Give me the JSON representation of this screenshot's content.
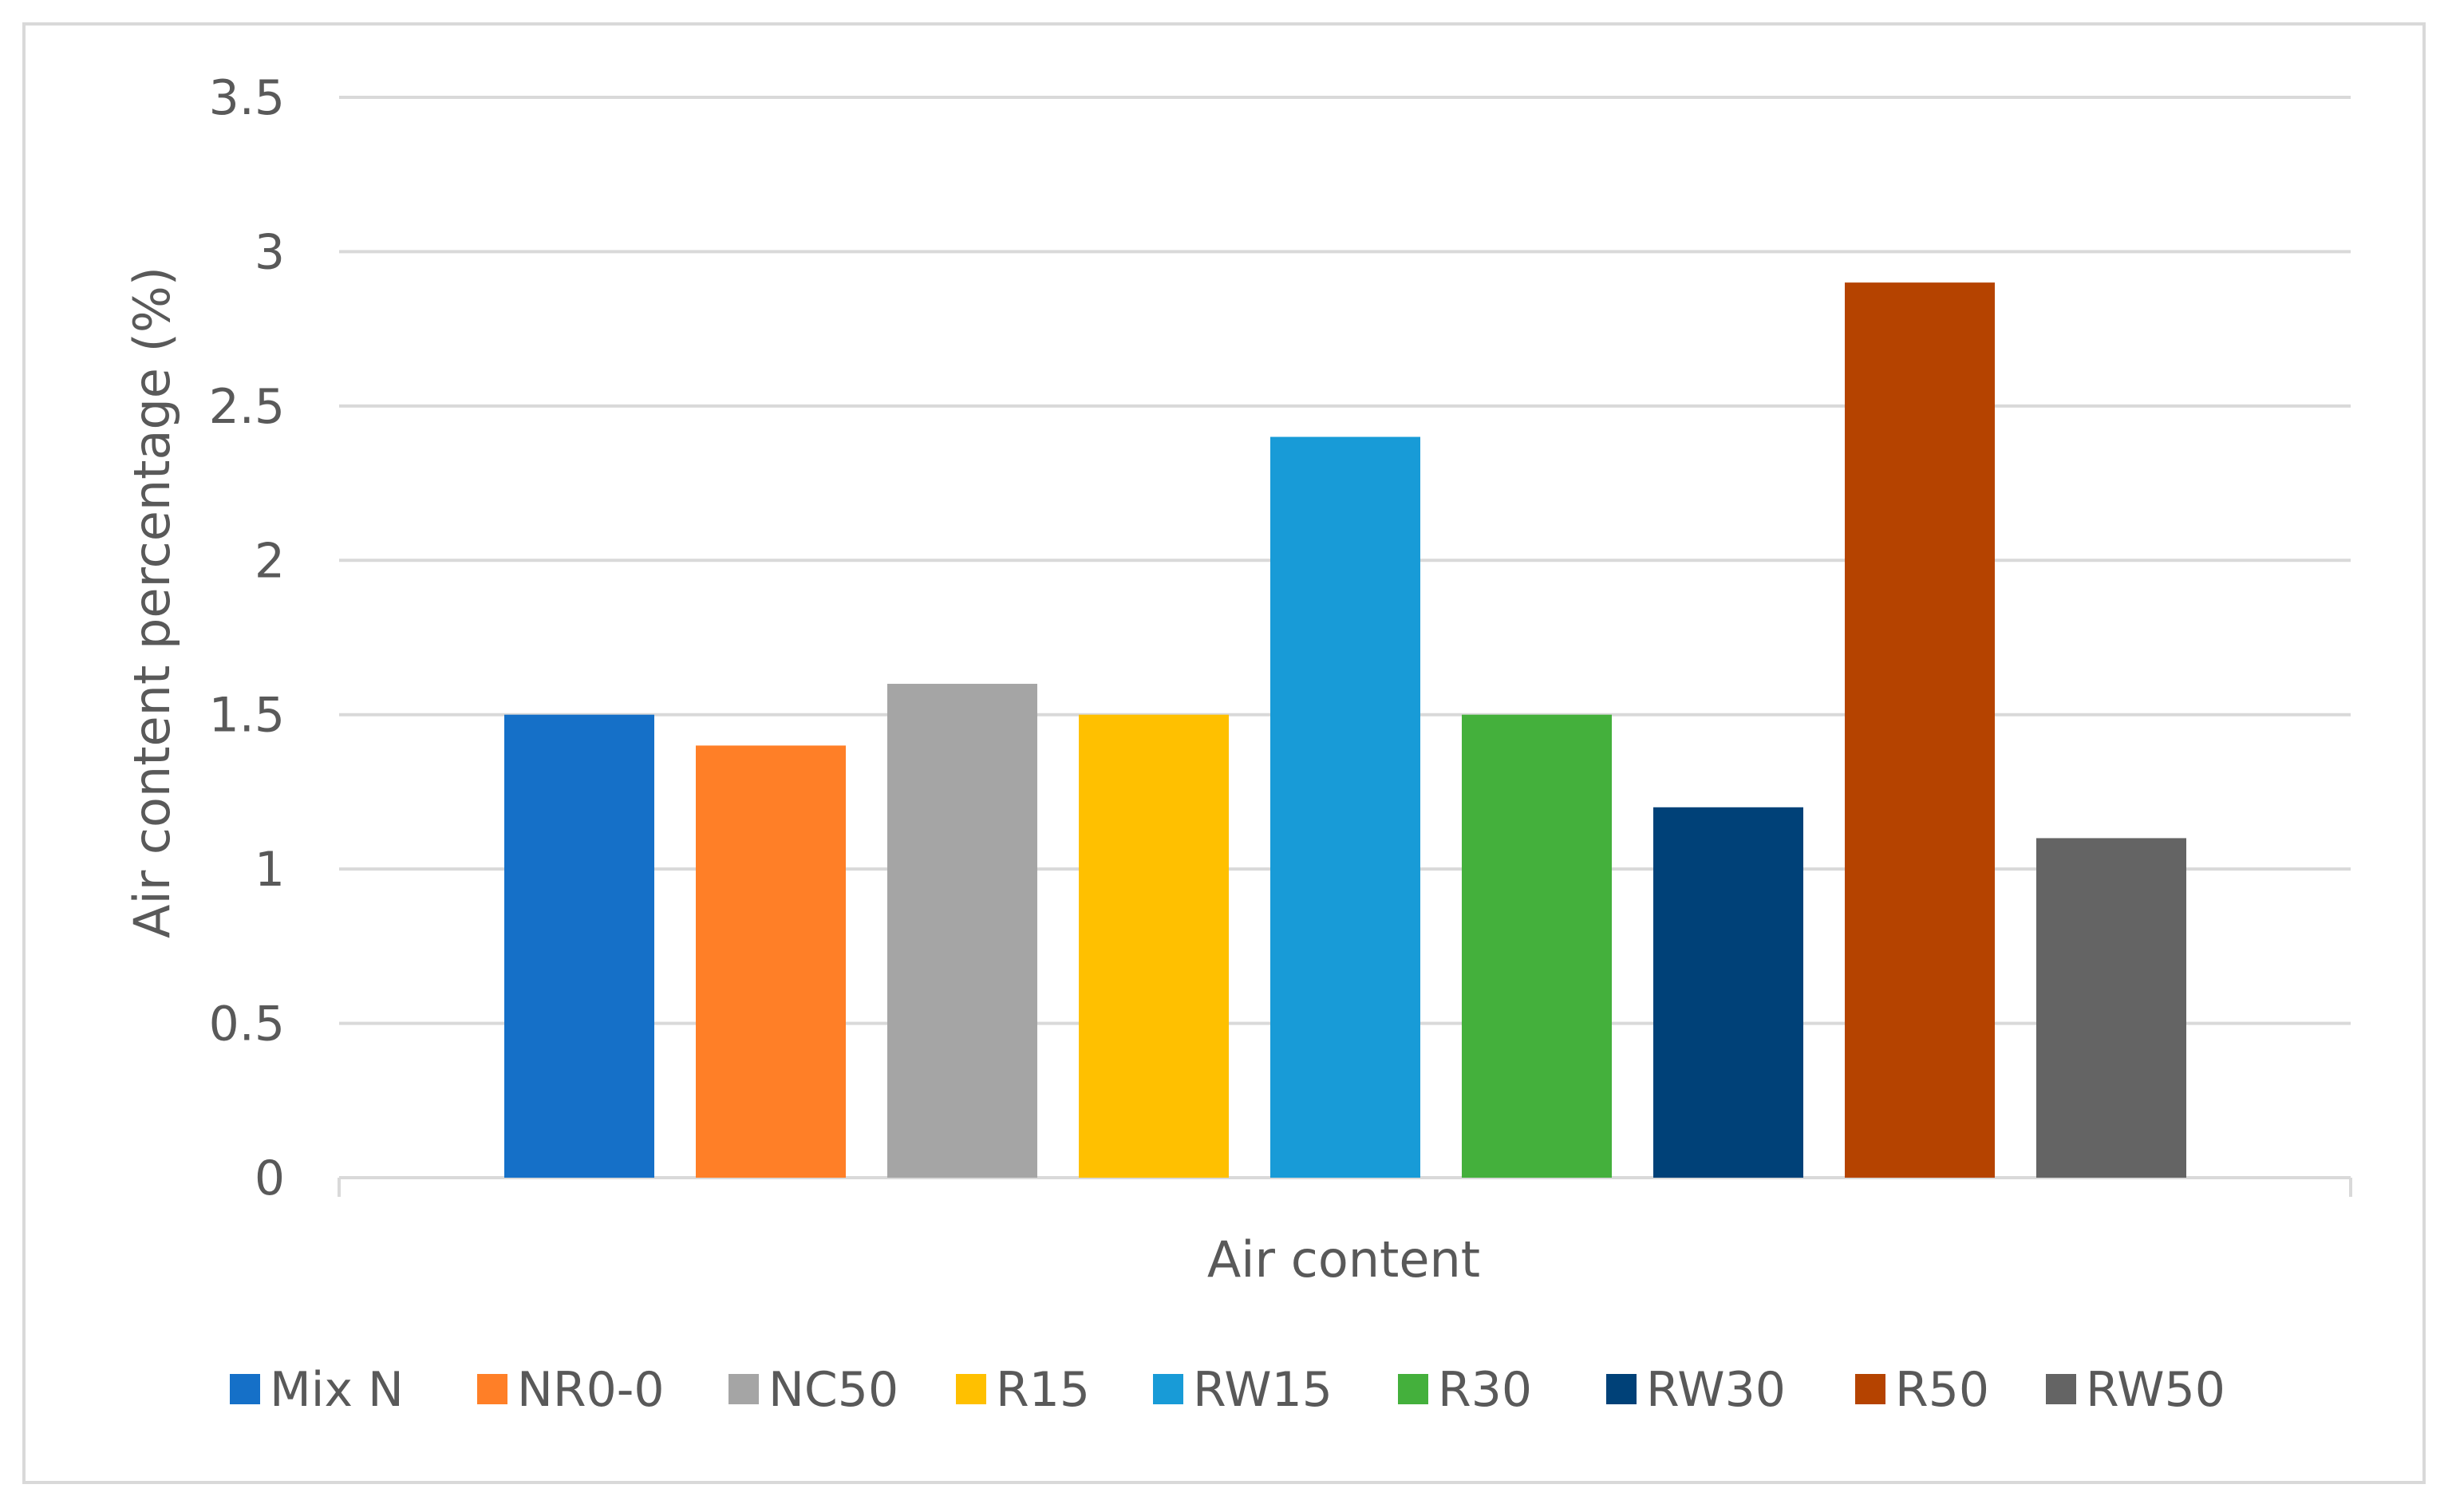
{
  "chart_data": {
    "type": "bar",
    "title": "",
    "xlabel": "Air content",
    "ylabel": "Air content percentage (%)",
    "ylim": [
      0,
      3.5
    ],
    "yticks": [
      "0",
      "0.5",
      "1",
      "1.5",
      "2",
      "2.5",
      "3",
      "3.5"
    ],
    "grid": true,
    "legend_position": "bottom",
    "categories": [
      "Air content"
    ],
    "series": [
      {
        "name": "Mix N",
        "values": [
          1.5
        ],
        "color": "#1570C8"
      },
      {
        "name": "NR0-0",
        "values": [
          1.4
        ],
        "color": "#FF7F27"
      },
      {
        "name": "NC50",
        "values": [
          1.6
        ],
        "color": "#A5A5A5"
      },
      {
        "name": "R15",
        "values": [
          1.5
        ],
        "color": "#FFC000"
      },
      {
        "name": "RW15",
        "values": [
          2.4
        ],
        "color": "#189BD7"
      },
      {
        "name": "R30",
        "values": [
          1.5
        ],
        "color": "#44B03C"
      },
      {
        "name": "RW30",
        "values": [
          1.2
        ],
        "color": "#004178"
      },
      {
        "name": "R50",
        "values": [
          2.9
        ],
        "color": "#B54300"
      },
      {
        "name": "RW50",
        "values": [
          1.1
        ],
        "color": "#646464"
      }
    ]
  }
}
